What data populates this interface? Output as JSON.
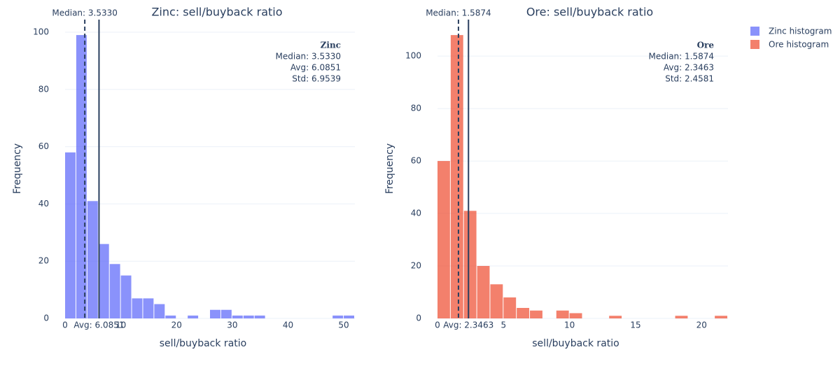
{
  "chart_data": [
    {
      "type": "histogram",
      "title": "Zinc: sell/buyback ratio",
      "x_label": "sell/buyback ratio",
      "y_label": "Frequency",
      "name": "Zinc histogram",
      "color": "#636efa",
      "opacity": 0.75,
      "bins": [
        0,
        2,
        4,
        6,
        8,
        10,
        12,
        14,
        16,
        18,
        20,
        22,
        24,
        26,
        28,
        30,
        32,
        34,
        36,
        38,
        40,
        42,
        44,
        46,
        48,
        50,
        52
      ],
      "counts": [
        58,
        99,
        41,
        26,
        19,
        15,
        7,
        7,
        5,
        1,
        0,
        1,
        0,
        3,
        3,
        1,
        1,
        1,
        0,
        0,
        0,
        0,
        0,
        0,
        1,
        1
      ],
      "xlim": [
        0,
        52
      ],
      "ylim": [
        0,
        104.4
      ],
      "xticks": [
        0,
        10,
        20,
        30,
        40,
        50
      ],
      "yticks": [
        0,
        20,
        40,
        60,
        80,
        100
      ],
      "grid": true,
      "median": 3.533,
      "avg": 6.0851,
      "stats_title": "Zinc",
      "stats": [
        "Median: 3.5330",
        "Avg: 6.0851",
        "Std: 6.9539"
      ]
    },
    {
      "type": "histogram",
      "title": "Ore: sell/buyback ratio",
      "x_label": "sell/buyback ratio",
      "y_label": "Frequency",
      "name": "Ore histogram",
      "color": "#EF553B",
      "opacity": 0.75,
      "bins": [
        0,
        1,
        2,
        3,
        4,
        5,
        6,
        7,
        8,
        9,
        10,
        11,
        12,
        13,
        14,
        15,
        16,
        17,
        18,
        19,
        20,
        21,
        22
      ],
      "counts": [
        60,
        108,
        41,
        20,
        13,
        8,
        4,
        3,
        0,
        3,
        2,
        0,
        0,
        1,
        0,
        0,
        0,
        0,
        1,
        0,
        0,
        1
      ],
      "xlim": [
        0,
        22
      ],
      "ylim": [
        0,
        113.9
      ],
      "xticks": [
        0,
        5,
        10,
        15,
        20
      ],
      "yticks": [
        0,
        20,
        40,
        60,
        80,
        100
      ],
      "grid": true,
      "median": 1.5874,
      "avg": 2.3463,
      "stats_title": "Ore",
      "stats": [
        "Median: 1.5874",
        "Avg: 2.3463",
        "Std: 2.4581"
      ]
    }
  ]
}
